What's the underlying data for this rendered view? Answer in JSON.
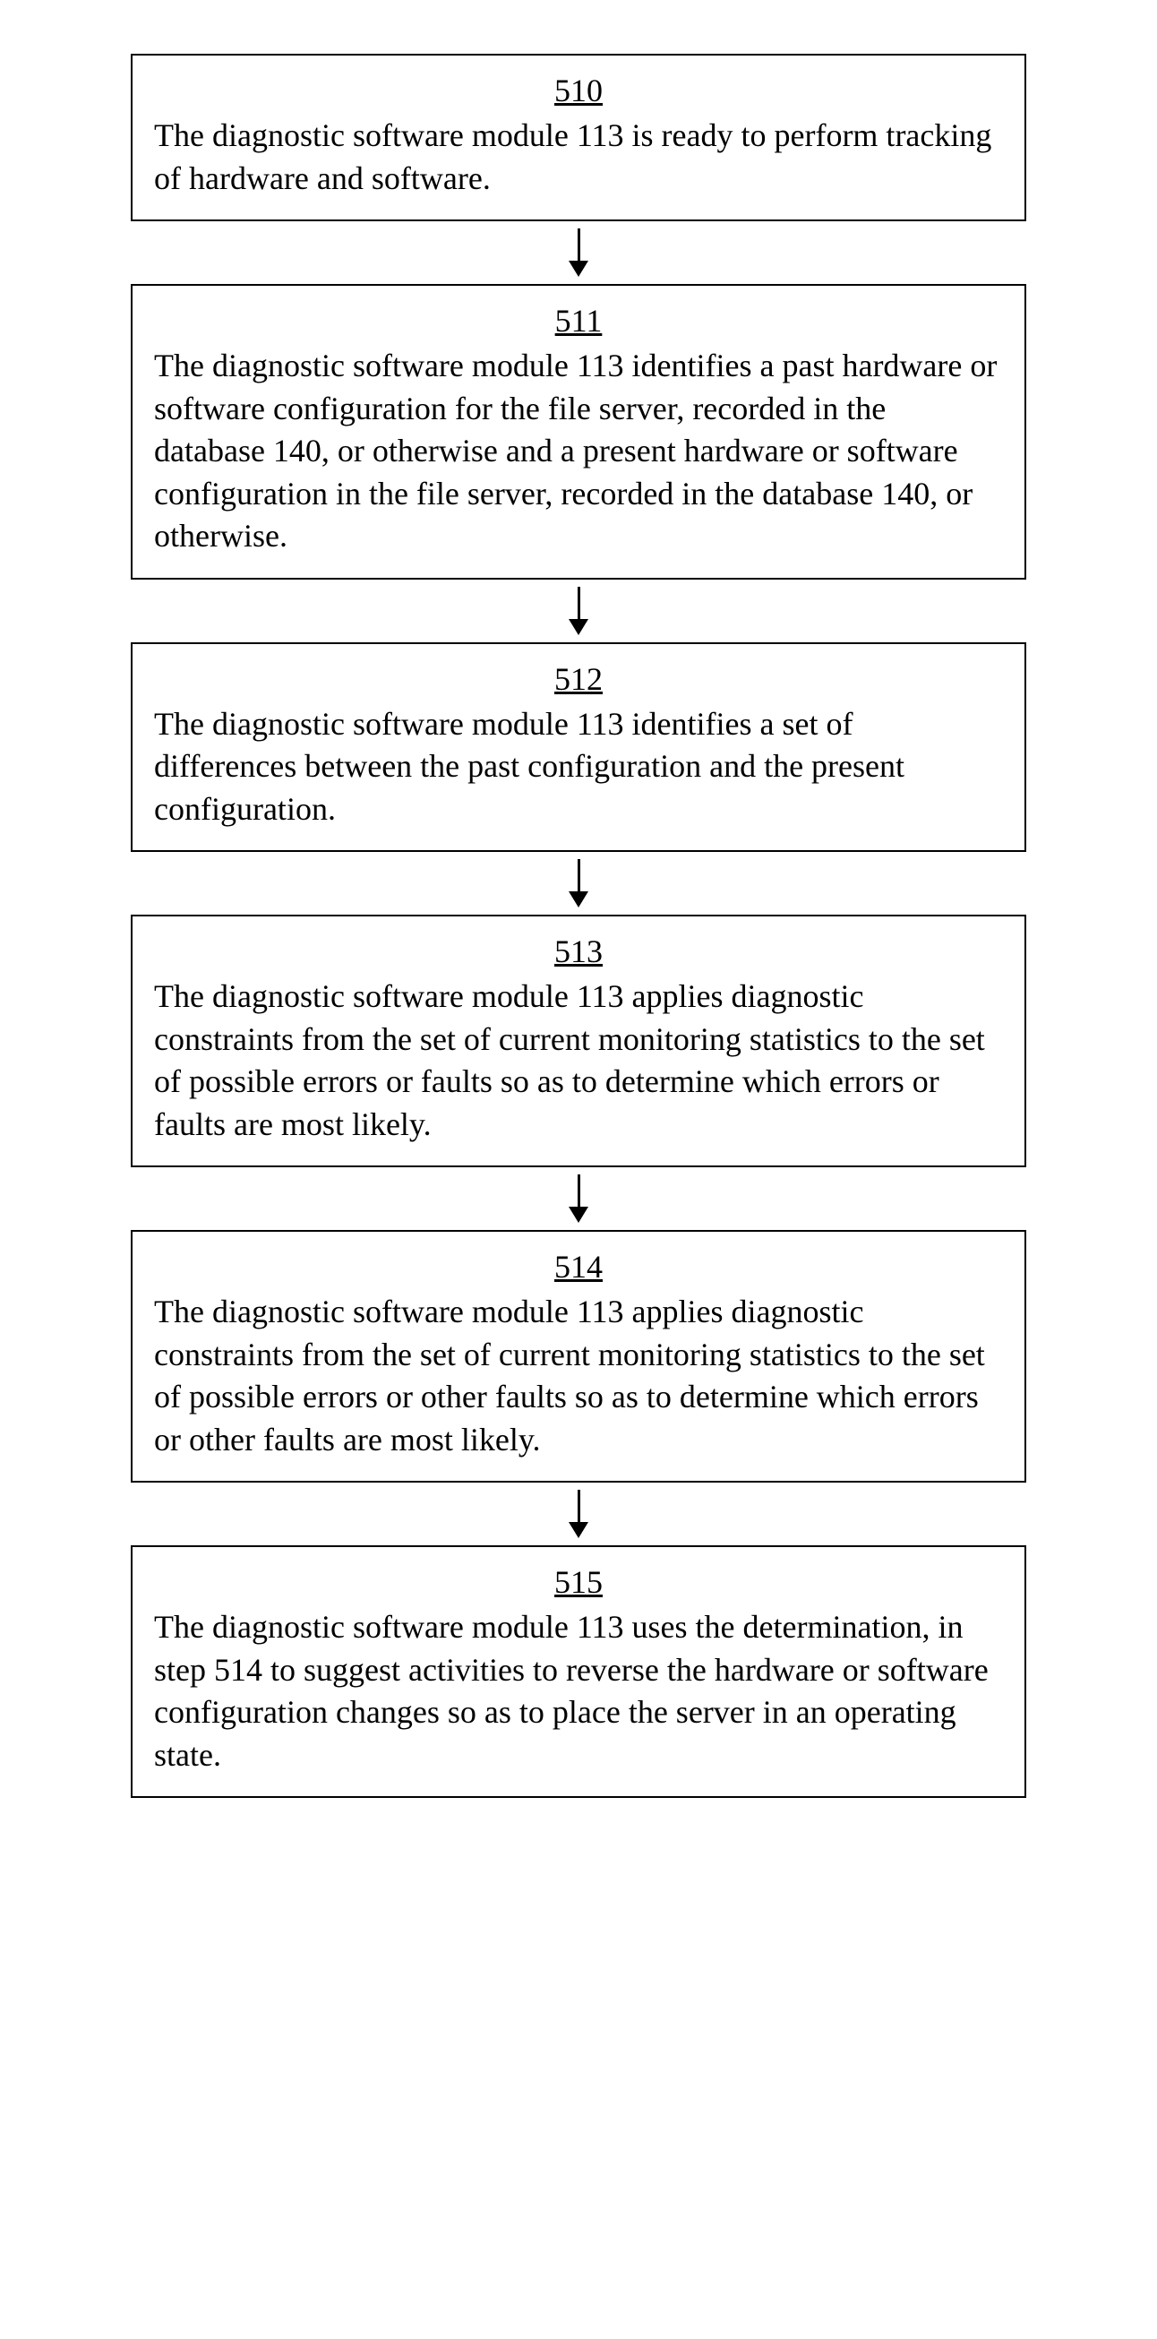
{
  "flowchart": {
    "type": "flowchart",
    "background_color": "#ffffff",
    "border_color": "#000000",
    "border_width": 2,
    "text_color": "#000000",
    "font_family": "Times New Roman",
    "number_fontsize": 36,
    "text_fontsize": 36,
    "arrow_color": "#000000",
    "arrow_shaft_width": 3,
    "arrow_shaft_height": 38,
    "arrow_head_width": 22,
    "arrow_head_height": 18,
    "nodes": [
      {
        "id": "510",
        "text": "The diagnostic software module 113 is ready to perform tracking of hardware and software."
      },
      {
        "id": "511",
        "text": "The diagnostic software module 113 identifies a past hardware or software configuration for the file server, recorded in the database 140, or otherwise and a present hardware or software configuration in the file server, recorded in the database 140, or otherwise."
      },
      {
        "id": "512",
        "text": "The diagnostic software module 113 identifies a set of differences between the past configuration and the present configuration."
      },
      {
        "id": "513",
        "text": "The diagnostic software module 113 applies diagnostic constraints from the set of current monitoring statistics to the set of possible errors or faults so as to determine which errors or faults are most likely."
      },
      {
        "id": "514",
        "text": "The diagnostic software module 113 applies diagnostic constraints from the set of current monitoring statistics to the set of possible errors or other faults so as to determine which errors or other faults are most likely."
      },
      {
        "id": "515",
        "text": "The diagnostic software module 113 uses the determination, in step 514 to suggest activities to reverse the hardware or software configuration changes so as to place the server in an operating state."
      }
    ],
    "edges": [
      {
        "from": "510",
        "to": "511"
      },
      {
        "from": "511",
        "to": "512"
      },
      {
        "from": "512",
        "to": "513"
      },
      {
        "from": "513",
        "to": "514"
      },
      {
        "from": "514",
        "to": "515"
      }
    ]
  }
}
